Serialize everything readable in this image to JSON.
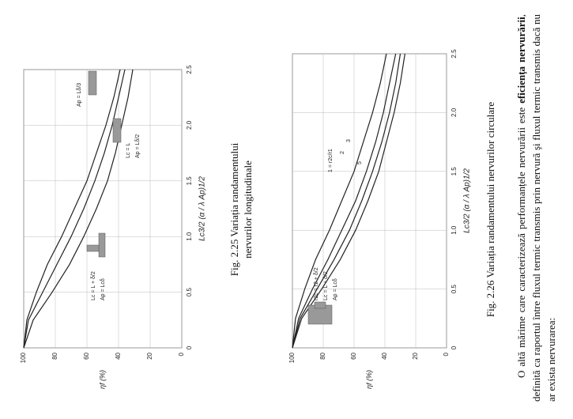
{
  "chart_data": [
    {
      "type": "line",
      "caption": [
        "Fig. 2.25 Variația randamentului",
        "nervurilor longitudinale"
      ],
      "xlabel": "Lc3/2 (α / λ Ap)1/2",
      "ylabel": "ηf (%)",
      "x": [
        0,
        0.25,
        0.5,
        0.75,
        1,
        1.25,
        1.5,
        1.75,
        2,
        2.25,
        2.5
      ],
      "series": [
        {
          "color": "#222222",
          "values": [
            100,
            98,
            92,
            85,
            76,
            68,
            60,
            54,
            48,
            43,
            39
          ]
        },
        {
          "color": "#222222",
          "values": [
            100,
            97,
            88,
            79,
            70,
            62,
            55,
            49,
            44,
            40,
            36
          ]
        },
        {
          "color": "#222222",
          "values": [
            100,
            94,
            82,
            71,
            62,
            54,
            47,
            42,
            38,
            34,
            31
          ]
        }
      ],
      "xlim": [
        0,
        2.5
      ],
      "xticks": [
        0,
        0.5,
        {
          "value": 1,
          "label": "1.0"
        },
        1.5,
        {
          "value": 2,
          "label": "2.0"
        },
        2.5
      ],
      "ylim": [
        0,
        100
      ],
      "yticks": [
        0,
        20,
        40,
        60,
        80,
        100
      ],
      "grid": true,
      "annotations": [
        "Lc = L + δ/2",
        "Ap = Lcδ",
        "Lc = L",
        "Ap = Lδ/2",
        "Ap = Lδ/3"
      ]
    },
    {
      "type": "line",
      "caption": [
        "Fig. 2.26 Variația randamentului nervurilor circulare"
      ],
      "xlabel": "Lc3/2 (α / λ Ap)1/2",
      "ylabel": "ηf (%)",
      "x": [
        0,
        0.25,
        0.5,
        0.75,
        1,
        1.25,
        1.5,
        1.75,
        2,
        2.25,
        2.5
      ],
      "series": [
        {
          "color": "#222222",
          "values": [
            100,
            98,
            92,
            85,
            76,
            68,
            60,
            54,
            48,
            43,
            39
          ]
        },
        {
          "color": "#222222",
          "values": [
            100,
            96,
            87,
            77,
            68,
            59,
            52,
            46,
            41,
            37,
            33
          ]
        },
        {
          "color": "#222222",
          "values": [
            100,
            95,
            84,
            73,
            63,
            55,
            48,
            42,
            37,
            33,
            30
          ]
        },
        {
          "color": "#222222",
          "values": [
            100,
            94,
            81,
            69,
            59,
            51,
            44,
            39,
            34,
            30,
            27
          ]
        }
      ],
      "xlim": [
        0,
        2.5
      ],
      "xticks": [
        0,
        0.5,
        {
          "value": 1,
          "label": "1.0"
        },
        1.5,
        {
          "value": 2,
          "label": "2.0"
        },
        2.5
      ],
      "ylim": [
        0,
        100
      ],
      "yticks": [
        0,
        20,
        40,
        60,
        80,
        100
      ],
      "grid": true,
      "annotations": [
        "r2c = r2 + δ/2",
        "Lc = L + δ/2",
        "Ap = Lcδ",
        "1 = r2c/r1",
        "2",
        "3",
        "5"
      ]
    }
  ],
  "text": {
    "paragraph": [
      "O altă mărime care caracterizează performanțele nervurării este ",
      "eficiența nervurării",
      ", definită ca raportul între fluxul termic transmis prin nervură şi fluxul termic transmis dacă nu ar exista nervurarea:"
    ]
  }
}
